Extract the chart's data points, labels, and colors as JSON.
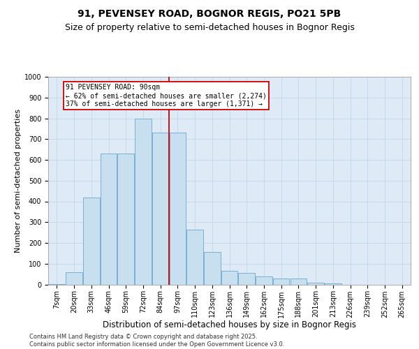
{
  "title_line1": "91, PEVENSEY ROAD, BOGNOR REGIS, PO21 5PB",
  "title_line2": "Size of property relative to semi-detached houses in Bognor Regis",
  "xlabel": "Distribution of semi-detached houses by size in Bognor Regis",
  "ylabel": "Number of semi-detached properties",
  "categories": [
    "7sqm",
    "20sqm",
    "33sqm",
    "46sqm",
    "59sqm",
    "72sqm",
    "84sqm",
    "97sqm",
    "110sqm",
    "123sqm",
    "136sqm",
    "149sqm",
    "162sqm",
    "175sqm",
    "188sqm",
    "201sqm",
    "213sqm",
    "226sqm",
    "239sqm",
    "252sqm",
    "265sqm"
  ],
  "values": [
    3,
    60,
    420,
    630,
    630,
    800,
    730,
    730,
    265,
    155,
    65,
    55,
    40,
    30,
    30,
    10,
    5,
    0,
    0,
    0,
    0
  ],
  "bar_color": "#c8dff0",
  "bar_edge_color": "#7aafd4",
  "vline_color": "#cc0000",
  "annotation_text": "91 PEVENSEY ROAD: 90sqm\n← 62% of semi-detached houses are smaller (2,274)\n37% of semi-detached houses are larger (1,371) →",
  "annotation_box_color": "#ffffff",
  "annotation_box_edge_color": "#cc0000",
  "ylim": [
    0,
    1000
  ],
  "yticks": [
    0,
    100,
    200,
    300,
    400,
    500,
    600,
    700,
    800,
    900,
    1000
  ],
  "grid_color": "#c5d8ec",
  "bg_color": "#deeaf6",
  "footer": "Contains HM Land Registry data © Crown copyright and database right 2025.\nContains public sector information licensed under the Open Government Licence v3.0.",
  "title_fontsize": 10,
  "subtitle_fontsize": 9,
  "tick_fontsize": 7,
  "xlabel_fontsize": 8.5,
  "ylabel_fontsize": 8,
  "annot_fontsize": 7,
  "footer_fontsize": 6
}
